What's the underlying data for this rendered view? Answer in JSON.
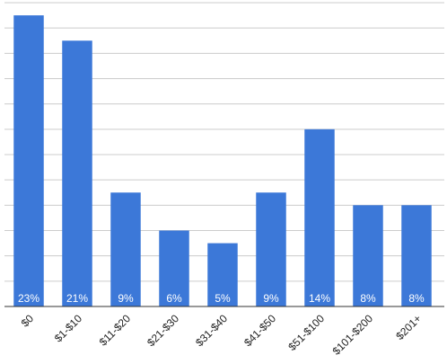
{
  "chart_data": {
    "type": "bar",
    "categories": [
      "$0",
      "$1-$10",
      "$11-$20",
      "$21-$30",
      "$31-$40",
      "$41-$50",
      "$51-$100",
      "$101-$200",
      "$201+"
    ],
    "values": [
      23,
      21,
      9,
      6,
      5,
      9,
      14,
      8,
      8
    ],
    "value_labels": [
      "23%",
      "21%",
      "9%",
      "6%",
      "5%",
      "9%",
      "14%",
      "8%",
      "8%"
    ],
    "color": "#3c78d8",
    "ylim": [
      0,
      24
    ],
    "yticks": [
      0,
      2,
      4,
      6,
      8,
      10,
      12,
      14,
      16,
      18,
      20,
      22,
      24
    ],
    "grid": true
  }
}
